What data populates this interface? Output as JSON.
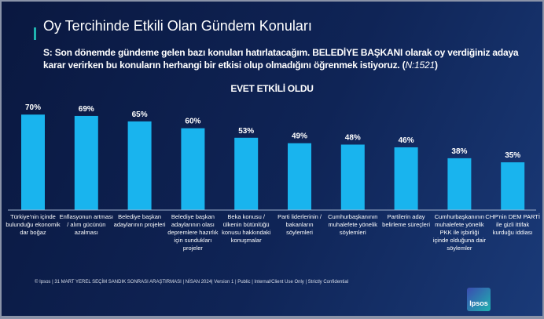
{
  "title": "Oy Tercihinde Etkili Olan Gündem Konuları",
  "question": {
    "text": "S: Son dönemde gündeme gelen bazı konuları hatırlatacağım. BELEDİYE BAŞKANI olarak oy verdiğiniz adaya karar verirken bu konuların herhangi bir etkisi olup olmadığını öğrenmek istiyoruz. (",
    "n": "N:1521",
    "close": ")"
  },
  "footer": "© Ipsos | 31 MART YEREL SEÇİM SANDIK SONRASI ARAŞTIRMASI | NİSAN 2024| Version 1 | Public | Internal/Client Use Only | Strictly Confidential",
  "logo": "Ipsos",
  "colors": {
    "bar": "#19b4ee",
    "background": "#0f2456"
  },
  "chart_data": {
    "type": "bar",
    "title": "EVET ETKİLİ OLDU",
    "categories": [
      "Türkiye'nin içinde bulunduğu ekonomik dar boğaz",
      "Enflasyonun artması / alım gücünün azalması",
      "Belediye başkan adaylarının projeleri",
      "Belediye başkan adaylarının olası depremlere hazırlık için sundukları projeler",
      "Beka konusu / ülkenin bütünlüğü konusu hakkındaki konuşmalar",
      "Parti liderlerinin / bakanların söylemleri",
      "Cumhurbaşkanının muhalefete yönelik söylemleri",
      "Partilerin aday belirleme süreçleri",
      "Cumhurbaşkanının muhalefete yönelik PKK ile işbirliği içinde olduğuna dair söylemler",
      "CHP'nin DEM PARTİ ile gizli ittifak kurduğu iddiası"
    ],
    "values": [
      70,
      69,
      65,
      60,
      53,
      49,
      48,
      46,
      38,
      35
    ],
    "labels": [
      "70%",
      "69%",
      "65%",
      "60%",
      "53%",
      "49%",
      "48%",
      "46%",
      "38%",
      "35%"
    ],
    "ylim": [
      0,
      100
    ],
    "xlabel": "",
    "ylabel": "",
    "grid": false
  }
}
